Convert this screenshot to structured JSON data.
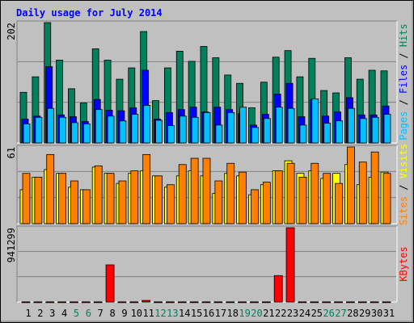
{
  "chart_data": {
    "type": "bar",
    "title": "Daily usage for July 2014",
    "categories": [
      "1",
      "2",
      "3",
      "4",
      "5",
      "6",
      "7",
      "8",
      "9",
      "10",
      "11",
      "12",
      "13",
      "14",
      "15",
      "16",
      "17",
      "18",
      "19",
      "20",
      "21",
      "22",
      "23",
      "24",
      "25",
      "26",
      "27",
      "28",
      "29",
      "30",
      "31"
    ],
    "category_colors": [
      "#000000",
      "#000000",
      "#000000",
      "#000000",
      "#00805c",
      "#00805c",
      "#000000",
      "#000000",
      "#000000",
      "#000000",
      "#000000",
      "#00805c",
      "#00805c",
      "#000000",
      "#000000",
      "#000000",
      "#000000",
      "#000000",
      "#00805c",
      "#00805c",
      "#000000",
      "#000000",
      "#000000",
      "#000000",
      "#000000",
      "#00805c",
      "#00805c",
      "#000000",
      "#000000",
      "#000000",
      "#000000"
    ],
    "legend_separator": " / ",
    "panels": [
      {
        "ylim": [
          0,
          202
        ],
        "yticks": [
          202
        ],
        "series": [
          {
            "name": "Hits",
            "color": "#00805c",
            "values": [
              85,
              111,
              202,
              139,
              91,
              67,
              158,
              139,
              107,
              126,
              187,
              71,
              126,
              154,
              137,
              162,
              143,
              114,
              100,
              59,
              102,
              144,
              155,
              111,
              142,
              88,
              84,
              143,
              107,
              122,
              121
            ]
          },
          {
            "name": "Files",
            "color": "#0000ff",
            "values": [
              40,
              45,
              128,
              47,
              44,
              36,
              73,
              55,
              54,
              59,
              122,
              40,
              51,
              56,
              60,
              52,
              60,
              56,
              49,
              30,
              48,
              82,
              100,
              44,
              73,
              45,
              52,
              76,
              47,
              47,
              62
            ]
          },
          {
            "name": "Pages",
            "color": "#00c0ff",
            "values": [
              32,
              43,
              58,
              43,
              34,
              32,
              56,
              45,
              37,
              48,
              63,
              38,
              29,
              45,
              43,
              51,
              30,
              51,
              60,
              26,
              41,
              60,
              58,
              30,
              74,
              33,
              37,
              58,
              41,
              43,
              48
            ]
          }
        ]
      },
      {
        "ylim": [
          0,
          61
        ],
        "yticks": [
          61
        ],
        "series": [
          {
            "name": "Visits",
            "color": "#ffff00",
            "values": [
              27,
              37,
              43,
              40,
              29,
              27,
              45,
              40,
              32,
              40,
              42,
              38,
              29,
              38,
              42,
              38,
              24,
              40,
              38,
              23,
              31,
              42,
              50,
              40,
              42,
              36,
              40,
              47,
              31,
              37,
              41
            ]
          },
          {
            "name": "Sites",
            "color": "#ff8000",
            "values": [
              40,
              37,
              55,
              40,
              34,
              27,
              46,
              40,
              34,
              42,
              55,
              38,
              31,
              47,
              52,
              52,
              34,
              48,
              41,
              27,
              33,
              42,
              48,
              37,
              48,
              40,
              32,
              61,
              49,
              57,
              40
            ]
          }
        ]
      },
      {
        "ylim": [
          0,
          941299
        ],
        "yticks": [
          941299
        ],
        "series": [
          {
            "name": "KBytes",
            "color": "#ff0000",
            "values": [
              2000,
              2000,
              2000,
              2000,
              2000,
              2000,
              2000,
              470650,
              2000,
              2000,
              20000,
              2000,
              2000,
              2000,
              2000,
              2000,
              2000,
              2000,
              2000,
              2000,
              2000,
              335000,
              941299,
              2000,
              2000,
              2000,
              2000,
              2000,
              2000,
              2000,
              2000
            ]
          }
        ]
      }
    ]
  }
}
